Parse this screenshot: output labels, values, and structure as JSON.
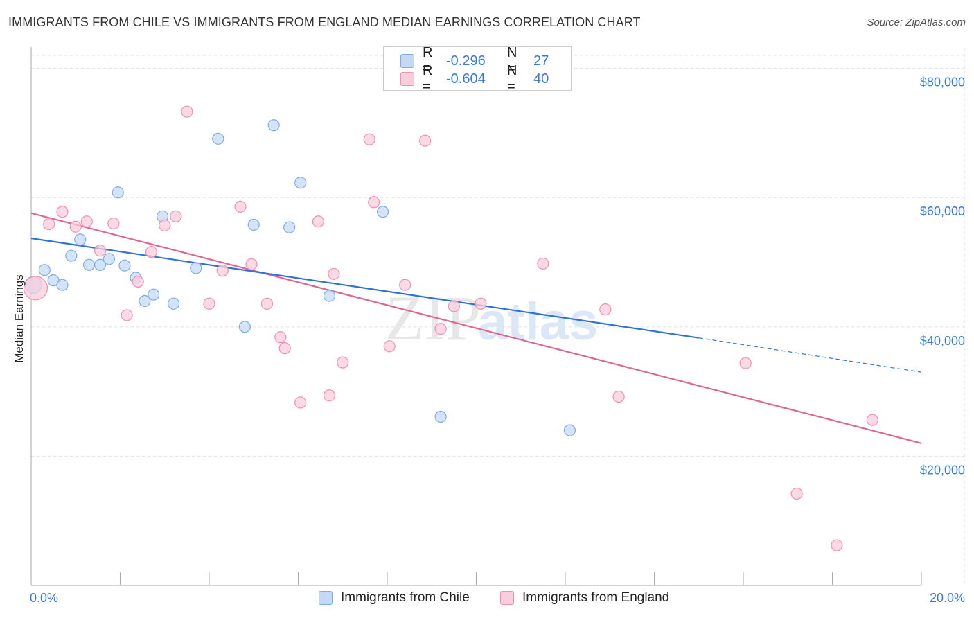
{
  "header": {
    "title": "IMMIGRANTS FROM CHILE VS IMMIGRANTS FROM ENGLAND MEDIAN EARNINGS CORRELATION CHART",
    "source": "Source: ZipAtlas.com"
  },
  "watermark": {
    "zip": "ZIP",
    "atlas": "atlas"
  },
  "legend": {
    "rows": [
      {
        "r_label": "R =",
        "r_value": "-0.296",
        "n_label": "N =",
        "n_value": "27"
      },
      {
        "r_label": "R =",
        "r_value": "-0.604",
        "n_label": "N =",
        "n_value": "40"
      }
    ]
  },
  "chart_data": {
    "type": "scatter",
    "title": "IMMIGRANTS FROM CHILE VS IMMIGRANTS FROM ENGLAND MEDIAN EARNINGS CORRELATION CHART",
    "ylabel": "Median Earnings",
    "xlabel": "",
    "xlim": [
      0,
      20
    ],
    "ylim": [
      0,
      82000
    ],
    "x_tick_labels": [
      "0.0%",
      "20.0%"
    ],
    "y_ticks": [
      20000,
      40000,
      60000,
      80000
    ],
    "y_tick_labels": [
      "$20,000",
      "$40,000",
      "$60,000",
      "$80,000"
    ],
    "grid": true,
    "legend_position": "top-center",
    "series": [
      {
        "name": "Immigrants from Chile",
        "color": "#7aaee8",
        "fill": "#c5d9f5",
        "r": -0.296,
        "n": 27,
        "trend": {
          "x0": 0,
          "y0": 53700,
          "x1": 15.0,
          "y1": 38300,
          "dash_x1": 20.0,
          "dash_y1": 33000
        },
        "points": [
          [
            0.05,
            46500
          ],
          [
            0.3,
            48800
          ],
          [
            0.5,
            47200
          ],
          [
            0.7,
            46500
          ],
          [
            0.9,
            51000
          ],
          [
            1.1,
            53500
          ],
          [
            1.3,
            49600
          ],
          [
            1.55,
            49600
          ],
          [
            1.75,
            50500
          ],
          [
            1.95,
            60800
          ],
          [
            2.1,
            49500
          ],
          [
            2.35,
            47600
          ],
          [
            2.55,
            44000
          ],
          [
            2.75,
            45000
          ],
          [
            2.95,
            57100
          ],
          [
            3.2,
            43600
          ],
          [
            3.7,
            49100
          ],
          [
            4.2,
            69100
          ],
          [
            4.8,
            40000
          ],
          [
            5.0,
            55800
          ],
          [
            5.45,
            71200
          ],
          [
            5.8,
            55400
          ],
          [
            6.05,
            62300
          ],
          [
            6.7,
            44800
          ],
          [
            7.9,
            57800
          ],
          [
            9.2,
            26100
          ],
          [
            12.1,
            24000
          ]
        ]
      },
      {
        "name": "Immigrants from England",
        "color": "#f28fb0",
        "fill": "#f9cddc",
        "r": -0.604,
        "n": 40,
        "trend": {
          "x0": 0,
          "y0": 57600,
          "x1": 20.0,
          "y1": 22000
        },
        "points": [
          [
            0.1,
            46000
          ],
          [
            0.4,
            55900
          ],
          [
            0.7,
            57800
          ],
          [
            1.0,
            55500
          ],
          [
            1.25,
            56300
          ],
          [
            1.55,
            51800
          ],
          [
            1.85,
            56000
          ],
          [
            2.15,
            41800
          ],
          [
            2.4,
            47000
          ],
          [
            2.7,
            51600
          ],
          [
            3.0,
            55700
          ],
          [
            3.25,
            57100
          ],
          [
            3.5,
            73300
          ],
          [
            4.0,
            43600
          ],
          [
            4.3,
            48700
          ],
          [
            4.7,
            58600
          ],
          [
            4.95,
            49700
          ],
          [
            5.3,
            43600
          ],
          [
            5.6,
            38400
          ],
          [
            5.7,
            36700
          ],
          [
            6.05,
            28300
          ],
          [
            6.45,
            56300
          ],
          [
            6.7,
            29400
          ],
          [
            6.8,
            48200
          ],
          [
            7.0,
            34500
          ],
          [
            7.6,
            69000
          ],
          [
            7.7,
            59300
          ],
          [
            8.05,
            37000
          ],
          [
            8.4,
            46500
          ],
          [
            8.85,
            68800
          ],
          [
            9.2,
            39700
          ],
          [
            9.5,
            43200
          ],
          [
            10.1,
            43600
          ],
          [
            11.5,
            49800
          ],
          [
            12.9,
            42700
          ],
          [
            13.2,
            29200
          ],
          [
            16.05,
            34400
          ],
          [
            17.2,
            14200
          ],
          [
            18.1,
            6200
          ],
          [
            18.9,
            25600
          ]
        ]
      }
    ]
  }
}
